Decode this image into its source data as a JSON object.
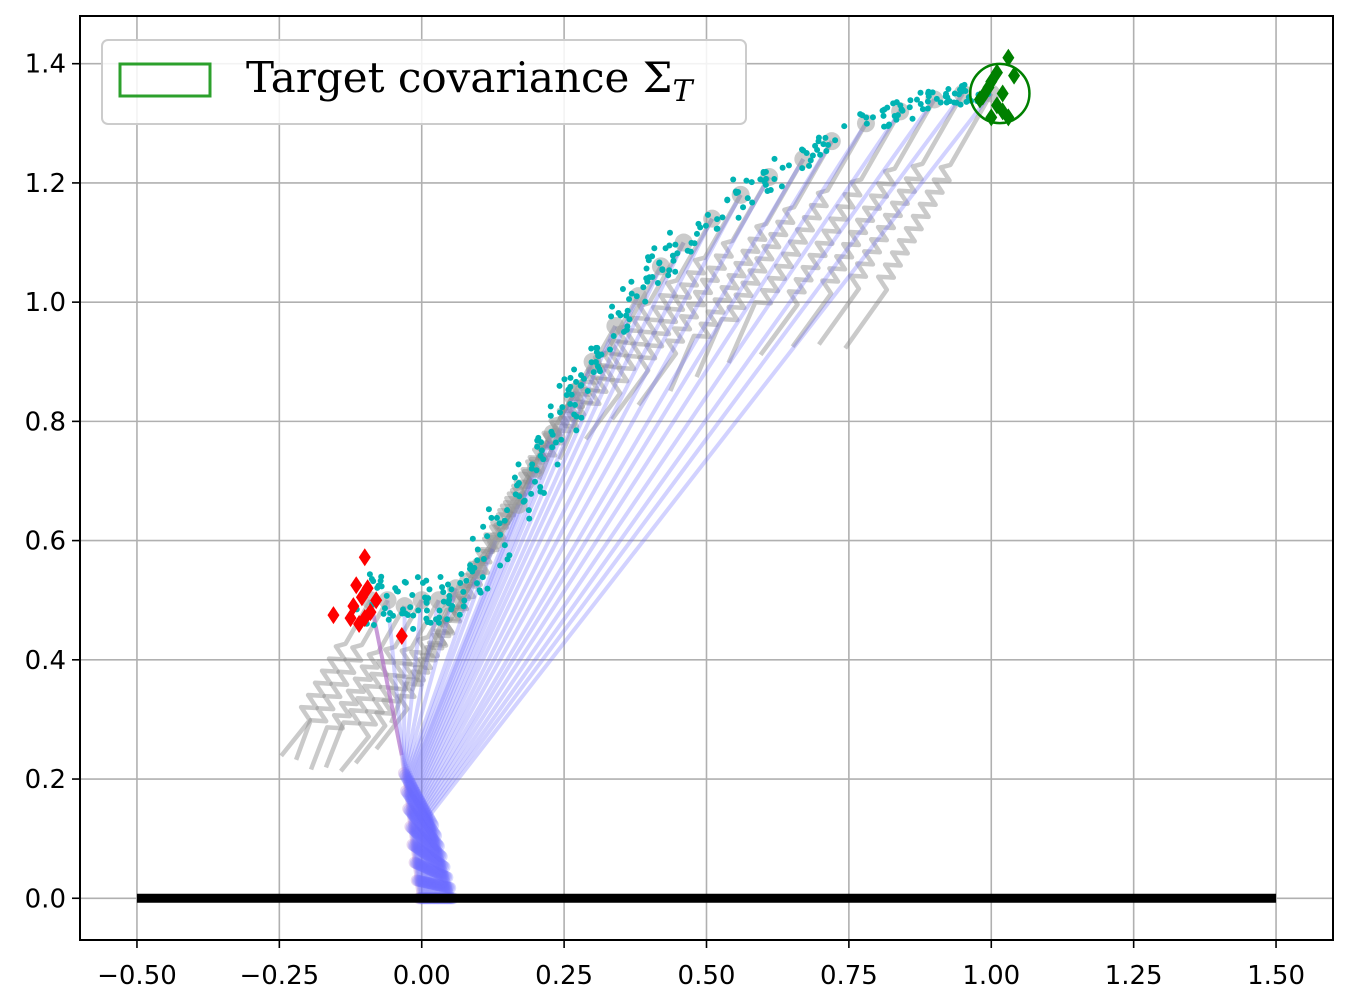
{
  "chart_data": {
    "type": "scatter",
    "title": "",
    "xlabel": "",
    "ylabel": "",
    "xlim": [
      -0.6,
      1.6
    ],
    "ylim": [
      -0.07,
      1.48
    ],
    "grid": true,
    "legend_position": "top-left",
    "x_ticks": [
      {
        "value": -0.5,
        "label": "−0.50"
      },
      {
        "value": -0.25,
        "label": "−0.25"
      },
      {
        "value": 0.0,
        "label": "0.00"
      },
      {
        "value": 0.25,
        "label": "0.25"
      },
      {
        "value": 0.5,
        "label": "0.50"
      },
      {
        "value": 0.75,
        "label": "0.75"
      },
      {
        "value": 1.0,
        "label": "1.00"
      },
      {
        "value": 1.25,
        "label": "1.25"
      },
      {
        "value": 1.5,
        "label": "1.50"
      }
    ],
    "y_ticks": [
      {
        "value": 0.0,
        "label": "0.0"
      },
      {
        "value": 0.2,
        "label": "0.2"
      },
      {
        "value": 0.4,
        "label": "0.4"
      },
      {
        "value": 0.6,
        "label": "0.6"
      },
      {
        "value": 0.8,
        "label": "0.8"
      },
      {
        "value": 1.0,
        "label": "1.0"
      },
      {
        "value": 1.2,
        "label": "1.2"
      },
      {
        "value": 1.4,
        "label": "1.4"
      }
    ],
    "legend": [
      {
        "label": "Target covariance Σ",
        "subscript": "T",
        "color": "#2ca02c"
      }
    ],
    "ground_line": {
      "x": [
        -0.5,
        1.5
      ],
      "y": 0.0,
      "color": "#000000"
    },
    "target": {
      "center": [
        1.015,
        1.35
      ],
      "radius": 0.052,
      "color": "#008000"
    },
    "mean_path": [
      [
        -0.09,
        0.5
      ],
      [
        -0.06,
        0.5
      ],
      [
        -0.03,
        0.49
      ],
      [
        0.0,
        0.5
      ],
      [
        0.03,
        0.5
      ],
      [
        0.06,
        0.52
      ],
      [
        0.1,
        0.55
      ],
      [
        0.13,
        0.6
      ],
      [
        0.17,
        0.66
      ],
      [
        0.2,
        0.72
      ],
      [
        0.23,
        0.78
      ],
      [
        0.27,
        0.85
      ],
      [
        0.3,
        0.9
      ],
      [
        0.34,
        0.96
      ],
      [
        0.38,
        1.01
      ],
      [
        0.42,
        1.06
      ],
      [
        0.46,
        1.1
      ],
      [
        0.51,
        1.14
      ],
      [
        0.56,
        1.18
      ],
      [
        0.61,
        1.21
      ],
      [
        0.67,
        1.24
      ],
      [
        0.72,
        1.27
      ],
      [
        0.78,
        1.3
      ],
      [
        0.84,
        1.32
      ],
      [
        0.9,
        1.34
      ],
      [
        0.95,
        1.35
      ],
      [
        1.0,
        1.35
      ]
    ],
    "start_samples": [
      [
        -0.155,
        0.475
      ],
      [
        -0.115,
        0.525
      ],
      [
        -0.1,
        0.572
      ],
      [
        -0.125,
        0.47
      ],
      [
        -0.105,
        0.505
      ],
      [
        -0.09,
        0.48
      ],
      [
        -0.08,
        0.5
      ],
      [
        -0.11,
        0.46
      ],
      [
        -0.095,
        0.52
      ],
      [
        -0.12,
        0.49
      ],
      [
        -0.035,
        0.44
      ],
      [
        -0.1,
        0.47
      ]
    ],
    "end_samples": [
      [
        1.03,
        1.41
      ],
      [
        1.04,
        1.38
      ],
      [
        1.0,
        1.37
      ],
      [
        1.02,
        1.35
      ],
      [
        0.98,
        1.34
      ],
      [
        1.01,
        1.33
      ],
      [
        1.03,
        1.31
      ],
      [
        0.995,
        1.36
      ],
      [
        1.02,
        1.32
      ],
      [
        1.01,
        1.385
      ],
      [
        0.985,
        1.345
      ],
      [
        1.0,
        1.31
      ]
    ],
    "series": [
      {
        "name": "",
        "color": "#00b3b3",
        "marker": "dot"
      },
      {
        "name": "",
        "color": "#ff0000",
        "marker": "diamond"
      },
      {
        "name": "",
        "color": "#008000",
        "marker": "diamond"
      },
      {
        "name": "",
        "color": "#0000ff",
        "marker": "line"
      },
      {
        "name": "",
        "color": "#a0a0a0",
        "marker": "spring"
      }
    ]
  }
}
